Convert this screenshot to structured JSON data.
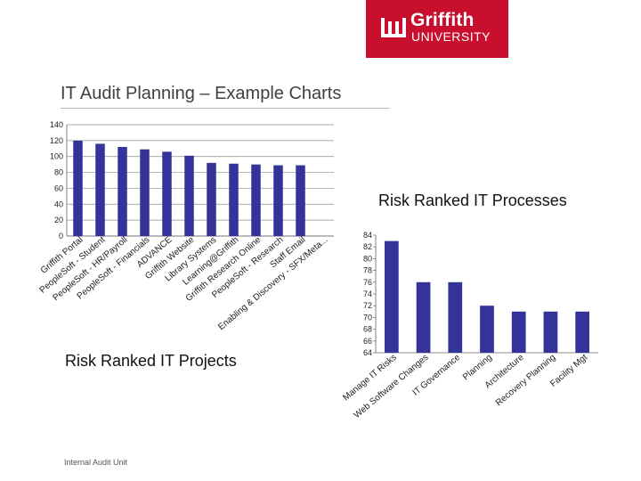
{
  "logo": {
    "brand": "Griffith",
    "sub": "UNIVERSITY",
    "accent": "#c8102e"
  },
  "slide": {
    "title": "IT Audit Planning – Example Charts",
    "footer": "Internal Audit Unit"
  },
  "bar_color": "#333399",
  "chart_data": [
    {
      "type": "bar",
      "title": "Risk Ranked IT Projects",
      "xlabel": "",
      "ylabel": "",
      "ylim": [
        0,
        140
      ],
      "yticks": [
        0,
        20,
        40,
        60,
        80,
        100,
        120,
        140
      ],
      "grid": true,
      "categories": [
        "Griffith Portal",
        "PeopleSoft - Student",
        "PeopleSoft - HR/Payroll",
        "PeopleSoft - Financials",
        "ADVANCE",
        "Griffith Website",
        "Library Systems",
        "Learning@Griffith",
        "Griffith Research Online",
        "PeopleSoft - Research",
        "Staff Email",
        "Enabling & Discovery - SFX/Meta..."
      ],
      "values": [
        120,
        116,
        112,
        109,
        106,
        101,
        92,
        91,
        90,
        89,
        89,
        0
      ]
    },
    {
      "type": "bar",
      "title": "Risk Ranked IT Processes",
      "xlabel": "",
      "ylabel": "",
      "ylim": [
        64,
        84
      ],
      "yticks": [
        64,
        66,
        68,
        70,
        72,
        74,
        76,
        78,
        80,
        82,
        84
      ],
      "grid": false,
      "categories": [
        "Manage IT Risks",
        "Web Software Changes",
        "IT Governance",
        "Planning",
        "Architecture",
        "Recovery Planning",
        "Facility Mgt"
      ],
      "values": [
        83,
        76,
        76,
        72,
        71,
        71,
        71
      ]
    }
  ]
}
